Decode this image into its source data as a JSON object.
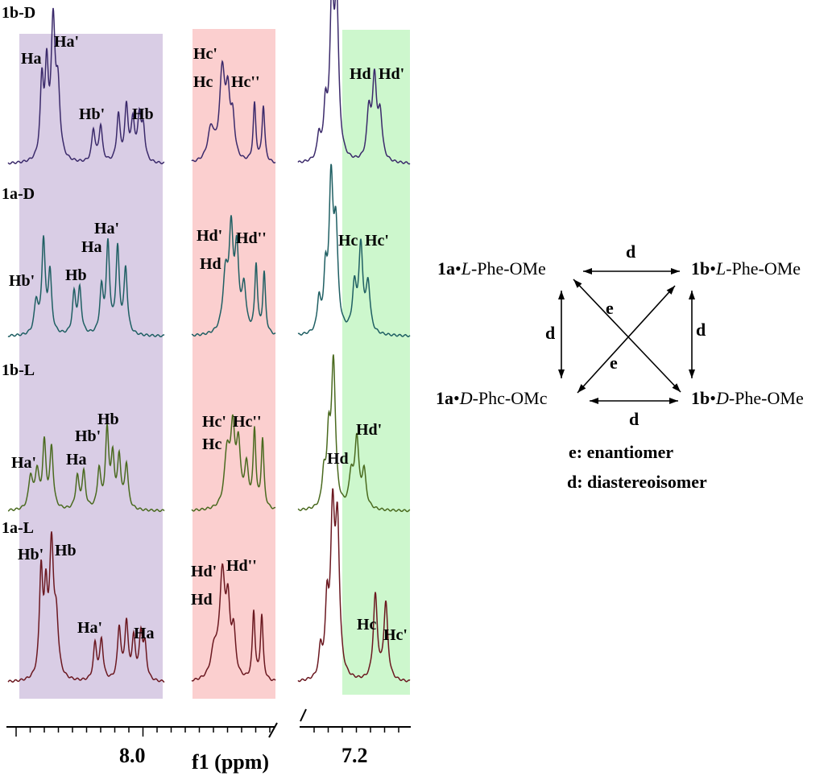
{
  "chart_data": {
    "type": "line",
    "xlabel": "f1 (ppm)",
    "x_ticks": [
      "8.0",
      "7.2"
    ],
    "x_axis_broken": true,
    "region_colors": {
      "a_b": "#d9cde5",
      "c_d_mid": "#fbcfcf",
      "c_d_right": "#cdf7cd"
    },
    "traces": [
      {
        "name": "1b-D",
        "color": "#3b2a6b",
        "peak_labels": {
          "left": [
            "Ha",
            "Ha'",
            "Hb'",
            "Hb"
          ],
          "mid": [
            "Hc'",
            "Hc",
            "Hc''"
          ],
          "right": [
            "Hd",
            "Hd'"
          ]
        }
      },
      {
        "name": "1a-D",
        "color": "#1f5f63",
        "peak_labels": {
          "left": [
            "Hb'",
            "Hb",
            "Ha",
            "Ha'"
          ],
          "mid": [
            "Hd'",
            "Hd''",
            "Hd"
          ],
          "right": [
            "Hc",
            "Hc'"
          ]
        }
      },
      {
        "name": "1b-L",
        "color": "#4a6a1f",
        "peak_labels": {
          "left": [
            "Ha'",
            "Ha",
            "Hb'",
            "Hb"
          ],
          "mid": [
            "Hc'",
            "Hc''",
            "Hc"
          ],
          "right": [
            "Hd",
            "Hd'"
          ]
        }
      },
      {
        "name": "1a-L",
        "color": "#6b1820",
        "peak_labels": {
          "left": [
            "Hb'",
            "Hb",
            "Ha'",
            "Ha"
          ],
          "mid": [
            "Hd'",
            "Hd''",
            "Hd"
          ],
          "right": [
            "Hc",
            "Hc'"
          ]
        }
      }
    ]
  },
  "diagram": {
    "nodes": {
      "tl": {
        "bold": "1a",
        "dot": "•",
        "italic": "L",
        "rest": "-Phe-OMe"
      },
      "tr": {
        "bold": "1b",
        "dot": "•",
        "italic": "L",
        "rest": "-Phe-OMe"
      },
      "bl": {
        "bold": "1a",
        "dot": "•",
        "italic": "D",
        "rest": "-Phc-OMc"
      },
      "br": {
        "bold": "1b",
        "dot": "•",
        "italic": "D",
        "rest": "-Phe-OMe"
      }
    },
    "edge_labels": {
      "top": "d",
      "bottom": "d",
      "left": "d",
      "right": "d",
      "diag1": "e",
      "diag2": "e"
    },
    "legend": [
      "e: enantiomer",
      "d: diastereoisomer"
    ]
  }
}
